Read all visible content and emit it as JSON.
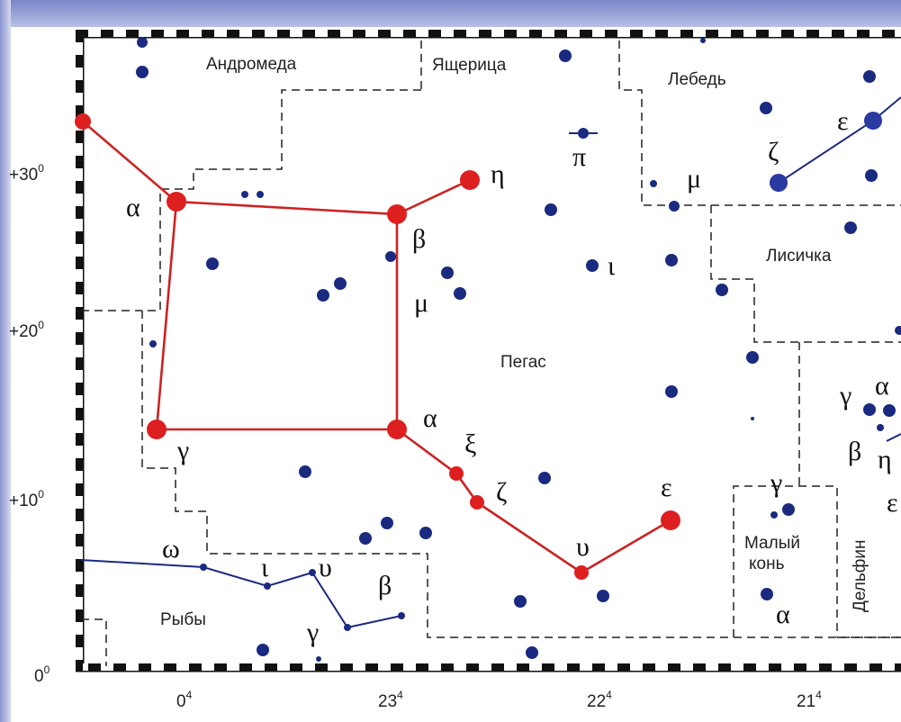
{
  "axis": {
    "y_ticks": [
      {
        "base": "+30",
        "sup": "0"
      },
      {
        "base": "+20",
        "sup": "0"
      },
      {
        "base": "+10",
        "sup": "0"
      },
      {
        "base": "0",
        "sup": "0"
      }
    ],
    "x_ticks": [
      {
        "base": "0",
        "sup": "4"
      },
      {
        "base": "23",
        "sup": "4"
      },
      {
        "base": "22",
        "sup": "4"
      },
      {
        "base": "21",
        "sup": "4"
      }
    ]
  },
  "constellations": {
    "andromeda": "Андромеда",
    "lizard": "Ящерица",
    "swan": "Лебедь",
    "fox": "Лисичка",
    "pegasus": "Пегас",
    "pisces": "Рыбы",
    "small_horse_1": "Малый",
    "small_horse_2": "конь",
    "dolphin": "Дельфин"
  },
  "greek": {
    "alpha_andromeda": "α",
    "eta_peg": "η",
    "beta_peg": "β",
    "mu_peg": "μ",
    "alpha_peg": "α",
    "gamma_peg": "γ",
    "xi_peg": "ξ",
    "zeta_peg": "ζ",
    "upsilon_peg": "υ",
    "epsilon_peg": "ε",
    "iota_peg": "ι",
    "pi_peg": "π",
    "mu_cyg": "μ",
    "zeta_cyg": "ζ",
    "epsilon_cyg": "ε",
    "gamma_del": "γ",
    "alpha_del": "α",
    "beta_del": "β",
    "eta_del": "η",
    "epsilon_del": "ε",
    "gamma_equ": "γ",
    "alpha_equ": "α",
    "omega_psc": "ω",
    "iota_psc": "ι",
    "upsilon_psc": "υ",
    "beta_psc": "β",
    "gamma_psc": "γ"
  },
  "colors": {
    "pegasus_line": "#cc2222",
    "star": "#1a2a80",
    "pisces_line": "#1a2a80",
    "boundary": "#222222",
    "border_frame": "#111111"
  }
}
